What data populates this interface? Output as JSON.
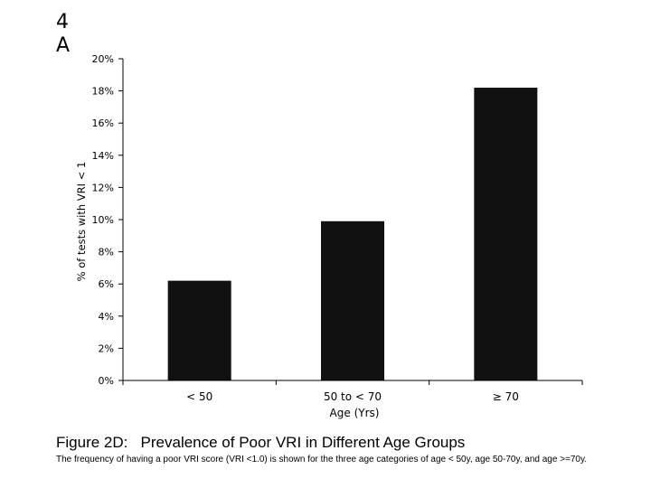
{
  "slide_label": "4\nA",
  "figure": {
    "title": "Figure 2D:   Prevalence of Poor VRI in Different Age Groups",
    "caption": "The frequency of having a poor VRI score (VRI <1.0) is shown for the three age categories of age < 50y, age 50-70y, and age >=70y."
  },
  "chart_data": {
    "type": "bar",
    "categories": [
      "< 50",
      "50 to < 70",
      "≥ 70"
    ],
    "values": [
      6.2,
      9.9,
      18.2
    ],
    "title": "",
    "xlabel": "Age (Yrs)",
    "ylabel": "% of tests with VRI < 1",
    "ylim": [
      0,
      20
    ],
    "yticks": [
      0,
      2,
      4,
      6,
      8,
      10,
      12,
      14,
      16,
      18,
      20
    ],
    "ytick_labels": [
      "0%",
      "2%",
      "4%",
      "6%",
      "8%",
      "10%",
      "12%",
      "14%",
      "16%",
      "18%",
      "20%"
    ],
    "grid": false,
    "legend": "none",
    "bar_color": "#111111"
  }
}
